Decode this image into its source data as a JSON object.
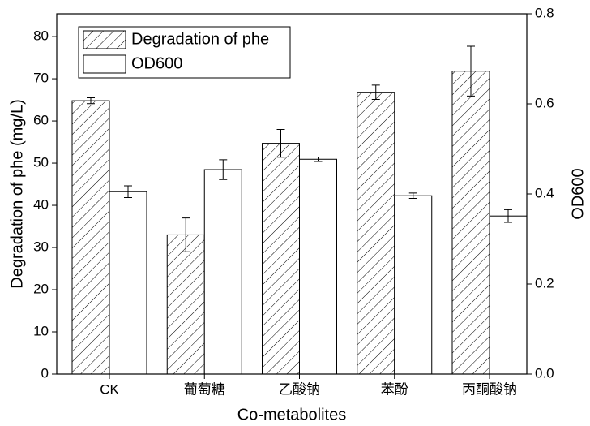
{
  "chart_data": {
    "type": "bar",
    "x_label": "Co-metabolites",
    "y_label": "Degradation of phe (mg/L)",
    "y2_label": "OD600",
    "categories": [
      "CK",
      "葡萄糖",
      "乙酸钠",
      "苯酚",
      "丙酮酸钠"
    ],
    "series": [
      {
        "name": "Degradation of phe",
        "color": "#000000",
        "pattern": "hatch",
        "values": [
          64.8,
          33,
          54.7,
          66.8,
          71.8
        ],
        "errors": [
          0.7,
          4,
          3.3,
          1.7,
          5.9
        ]
      },
      {
        "name": "OD600",
        "color": "#ffffff",
        "axis": "y2",
        "values": [
          0.405,
          0.454,
          0.477,
          0.396,
          0.351
        ],
        "errors": [
          0.013,
          0.022,
          0.005,
          0.006,
          0.014
        ]
      }
    ],
    "ylim": [
      0,
      85.4
    ],
    "yticks": [
      0,
      10,
      20,
      30,
      40,
      50,
      60,
      70,
      80
    ],
    "y2lim": [
      0,
      0.8
    ],
    "y2ticks": [
      {
        "value": 0,
        "label": "0.0"
      },
      0.2,
      0.4,
      0.6,
      0.8
    ],
    "legend": "upper left"
  }
}
